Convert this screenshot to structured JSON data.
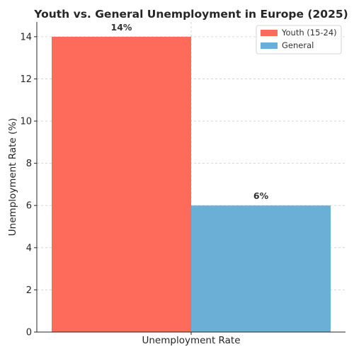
{
  "chart_data": {
    "type": "bar",
    "title": "Youth vs. General Unemployment in Europe (2025)",
    "xlabel": "Unemployment Rate",
    "ylabel": "Unemployment Rate (%)",
    "ylim": [
      0,
      14.7
    ],
    "yticks": [
      0,
      2,
      4,
      6,
      8,
      10,
      12,
      14
    ],
    "grid": true,
    "legend_position": "top-right",
    "series": [
      {
        "name": "Youth (15-24)",
        "value": 14,
        "label": "14%",
        "color": "#FF6B5B"
      },
      {
        "name": "General",
        "value": 6,
        "label": "6%",
        "color": "#6BAED6"
      }
    ]
  }
}
